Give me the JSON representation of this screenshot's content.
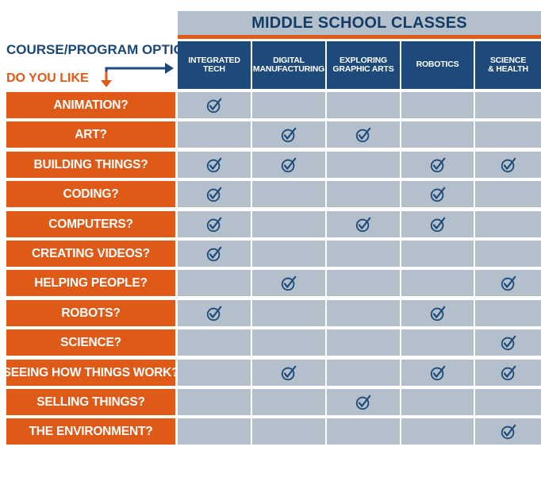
{
  "header": {
    "title": "MIDDLE SCHOOL CLASSES",
    "legend_title": "COURSE/PROGRAM OPTIONS",
    "legend_sub": "DO YOU LIKE"
  },
  "columns": [
    "INTEGRATED\nTECH",
    "DIGITAL\nMANUFACTURING",
    "EXPLORING\nGRAPHIC ARTS",
    "ROBOTICS",
    "SCIENCE\n& HEALTH"
  ],
  "rows": [
    {
      "label": "ANIMATION?",
      "checks": [
        true,
        false,
        false,
        false,
        false
      ]
    },
    {
      "label": "ART?",
      "checks": [
        false,
        true,
        true,
        false,
        false
      ]
    },
    {
      "label": "BUILDING THINGS?",
      "checks": [
        true,
        true,
        false,
        true,
        true
      ]
    },
    {
      "label": "CODING?",
      "checks": [
        true,
        false,
        false,
        true,
        false
      ]
    },
    {
      "label": "COMPUTERS?",
      "checks": [
        true,
        false,
        true,
        true,
        false
      ]
    },
    {
      "label": "CREATING VIDEOS?",
      "checks": [
        true,
        false,
        false,
        false,
        false
      ]
    },
    {
      "label": "HELPING PEOPLE?",
      "checks": [
        false,
        true,
        false,
        false,
        true
      ]
    },
    {
      "label": "ROBOTS?",
      "checks": [
        true,
        false,
        false,
        true,
        false
      ]
    },
    {
      "label": "SCIENCE?",
      "checks": [
        false,
        false,
        false,
        false,
        true
      ]
    },
    {
      "label": "SEEING HOW THINGS WORK?",
      "checks": [
        false,
        true,
        false,
        true,
        true
      ]
    },
    {
      "label": "SELLING THINGS?",
      "checks": [
        false,
        false,
        true,
        false,
        false
      ]
    },
    {
      "label": "THE ENVIRONMENT?",
      "checks": [
        false,
        false,
        false,
        false,
        true
      ]
    }
  ],
  "colors": {
    "navy": "#1d4a7a",
    "orange": "#e05a17",
    "grey_blue": "#b3c0cc",
    "check": "#1d4a7a"
  },
  "icons": {
    "check": "check-circle-icon",
    "arrow": "elbow-arrow-icon"
  }
}
